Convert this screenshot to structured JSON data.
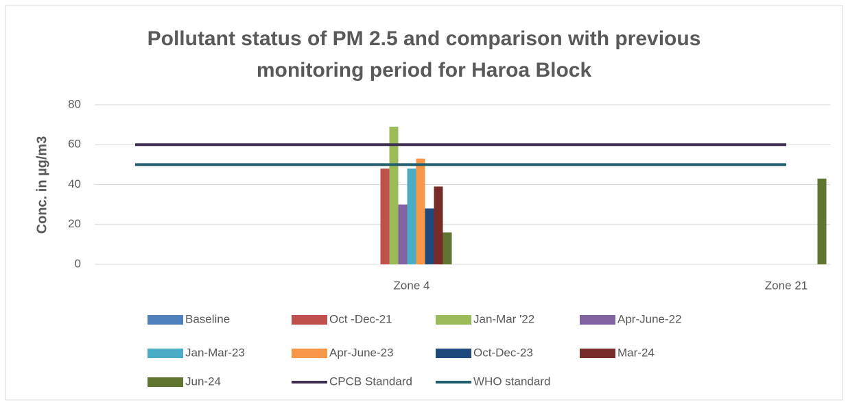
{
  "chart_data": {
    "type": "bar",
    "title": "Pollutant status of PM 2.5 and comparison with previous\nmonitoring period for Haroa Block",
    "y_label": "Conc. in µg/m3",
    "categories": [
      "Zone 4",
      "Zone 21"
    ],
    "series": [
      {
        "name": "Baseline",
        "color": "#4f81bd",
        "values": [
          null,
          null
        ]
      },
      {
        "name": "Oct -Dec-21",
        "color": "#c0504d",
        "values": [
          48,
          null
        ]
      },
      {
        "name": "Jan-Mar '22",
        "color": "#9bbb59",
        "values": [
          69,
          null
        ]
      },
      {
        "name": "Apr-June-22",
        "color": "#8064a2",
        "values": [
          30,
          null
        ]
      },
      {
        "name": "Jan-Mar-23",
        "color": "#4bacc6",
        "values": [
          48,
          null
        ]
      },
      {
        "name": "Apr-June-23",
        "color": "#f79646",
        "values": [
          53,
          null
        ]
      },
      {
        "name": "Oct-Dec-23",
        "color": "#1f497d",
        "values": [
          28,
          null
        ]
      },
      {
        "name": "Mar-24",
        "color": "#772c2a",
        "values": [
          39,
          null
        ]
      },
      {
        "name": "Jun-24",
        "color": "#5f7530",
        "values": [
          16,
          43
        ]
      },
      {
        "name": "CPCB Standard",
        "color": "#403152",
        "type": "line",
        "values": [
          60,
          60
        ]
      },
      {
        "name": "WHO standard",
        "color": "#215f6e",
        "type": "line",
        "values": [
          50,
          50
        ]
      }
    ],
    "ylim": [
      0,
      80
    ],
    "yticks": [
      0,
      20,
      40,
      60,
      80
    ],
    "grid": true,
    "legend": "bottom"
  }
}
